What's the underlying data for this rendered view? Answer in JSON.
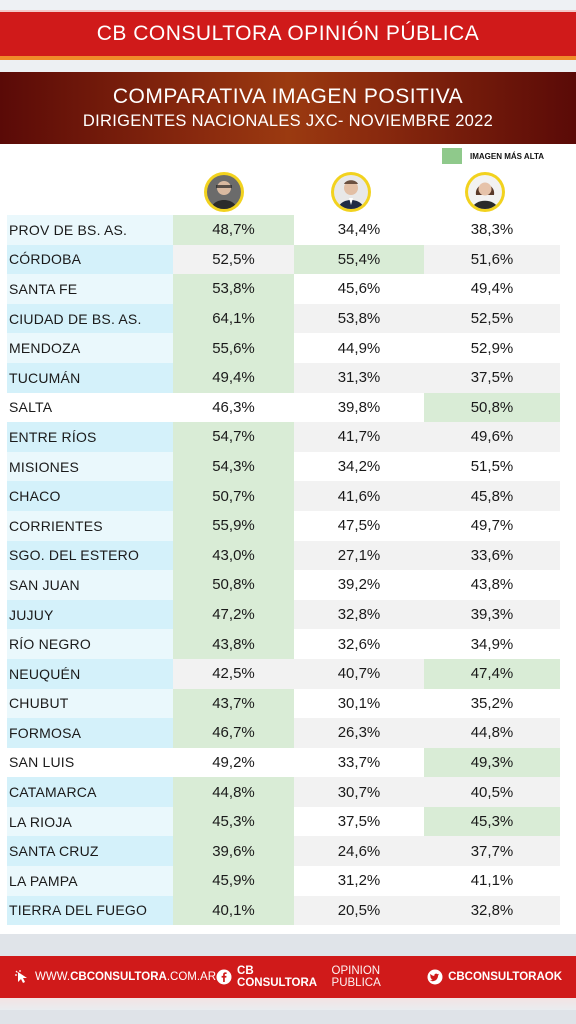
{
  "header": {
    "brand": "CB CONSULTORA OPINIÓN PÚBLICA",
    "title_line1": "COMPARATIVA IMAGEN POSITIVA",
    "title_line2": "DIRIGENTES NACIONALES JXC- NOVIEMBRE 2022"
  },
  "legend": {
    "label": "IMAGEN MÁS ALTA",
    "color": "#8fc98b"
  },
  "colors": {
    "highlight": "#d9ecd6",
    "row_blue": "#d4f1fa",
    "row_light": "#eaf8fc",
    "row_gray": "#f2f2f2",
    "row_white": "#ffffff",
    "brand_red": "#d01a1a"
  },
  "columns": [
    {
      "icon": "avatar-1-icon"
    },
    {
      "icon": "avatar-2-icon"
    },
    {
      "icon": "avatar-3-icon"
    }
  ],
  "chart_data": {
    "type": "table",
    "rows": [
      {
        "label": "PROV DE BS. AS.",
        "values": [
          "48,7%",
          "34,4%",
          "38,3%"
        ],
        "highest": 0
      },
      {
        "label": "CÓRDOBA",
        "values": [
          "52,5%",
          "55,4%",
          "51,6%"
        ],
        "highest": 1
      },
      {
        "label": "SANTA FE",
        "values": [
          "53,8%",
          "45,6%",
          "49,4%"
        ],
        "highest": 0
      },
      {
        "label": "CIUDAD DE BS. AS.",
        "values": [
          "64,1%",
          "53,8%",
          "52,5%"
        ],
        "highest": 0
      },
      {
        "label": "MENDOZA",
        "values": [
          "55,6%",
          "44,9%",
          "52,9%"
        ],
        "highest": 0
      },
      {
        "label": "TUCUMÁN",
        "values": [
          "49,4%",
          "31,3%",
          "37,5%"
        ],
        "highest": 0
      },
      {
        "label": "SALTA",
        "values": [
          "46,3%",
          "39,8%",
          "50,8%"
        ],
        "highest": 2
      },
      {
        "label": "ENTRE RÍOS",
        "values": [
          "54,7%",
          "41,7%",
          "49,6%"
        ],
        "highest": 0
      },
      {
        "label": "MISIONES",
        "values": [
          "54,3%",
          "34,2%",
          "51,5%"
        ],
        "highest": 0
      },
      {
        "label": "CHACO",
        "values": [
          "50,7%",
          "41,6%",
          "45,8%"
        ],
        "highest": 0
      },
      {
        "label": "CORRIENTES",
        "values": [
          "55,9%",
          "47,5%",
          "49,7%"
        ],
        "highest": 0
      },
      {
        "label": "SGO. DEL ESTERO",
        "values": [
          "43,0%",
          "27,1%",
          "33,6%"
        ],
        "highest": 0
      },
      {
        "label": "SAN JUAN",
        "values": [
          "50,8%",
          "39,2%",
          "43,8%"
        ],
        "highest": 0
      },
      {
        "label": "JUJUY",
        "values": [
          "47,2%",
          "32,8%",
          "39,3%"
        ],
        "highest": 0
      },
      {
        "label": "RÍO NEGRO",
        "values": [
          "43,8%",
          "32,6%",
          "34,9%"
        ],
        "highest": 0
      },
      {
        "label": "NEUQUÉN",
        "values": [
          "42,5%",
          "40,7%",
          "47,4%"
        ],
        "highest": 2
      },
      {
        "label": "CHUBUT",
        "values": [
          "43,7%",
          "30,1%",
          "35,2%"
        ],
        "highest": 0
      },
      {
        "label": "FORMOSA",
        "values": [
          "46,7%",
          "26,3%",
          "44,8%"
        ],
        "highest": 0
      },
      {
        "label": "SAN LUIS",
        "values": [
          "49,2%",
          "33,7%",
          "49,3%"
        ],
        "highest": 2
      },
      {
        "label": "CATAMARCA",
        "values": [
          "44,8%",
          "30,7%",
          "40,5%"
        ],
        "highest": 0
      },
      {
        "label": "LA RIOJA",
        "values": [
          "45,3%",
          "37,5%",
          "45,3%"
        ],
        "highest": [
          0,
          2
        ]
      },
      {
        "label": "SANTA CRUZ",
        "values": [
          "39,6%",
          "24,6%",
          "37,7%"
        ],
        "highest": 0
      },
      {
        "label": "LA PAMPA",
        "values": [
          "45,9%",
          "31,2%",
          "41,1%"
        ],
        "highest": 0
      },
      {
        "label": "TIERRA DEL FUEGO",
        "values": [
          "40,1%",
          "20,5%",
          "32,8%"
        ],
        "highest": 0
      }
    ]
  },
  "footer": {
    "website_prefix": "WWW.",
    "website_bold": "CBCONSULTORA",
    "website_suffix": ".COM.AR",
    "facebook_bold": "CB CONSULTORA",
    "facebook_light": " OPINION PUBLICA",
    "twitter": "CBCONSULTORAOK",
    "website_icon": "cursor-click-icon",
    "facebook_icon": "facebook-icon",
    "twitter_icon": "twitter-icon"
  }
}
